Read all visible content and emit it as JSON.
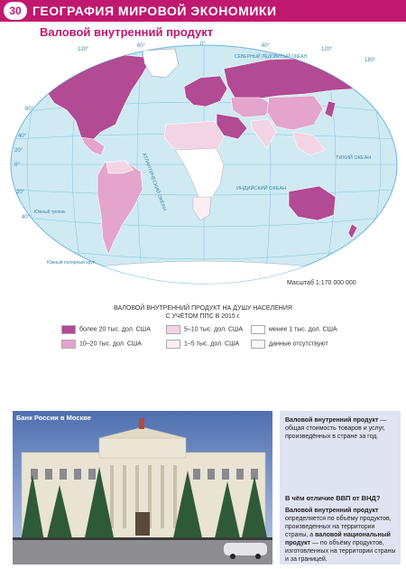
{
  "header": {
    "page_number": "30",
    "section_title": "ГЕОГРАФИЯ МИРОВОЙ ЭКОНОМИКИ"
  },
  "map": {
    "title": "Валовой внутренний продукт",
    "scale": "Масштаб 1:170 000 000",
    "ocean_labels": {
      "indian": "ИНДИЙСКИЙ ОКЕАН",
      "pacific_east": "ТИХИЙ ОКЕАН",
      "atlantic": "АТЛАНТИЧЕСКИЙ ОКЕАН",
      "arctic": "СЕВЕРНЫЙ ЛЕДОВИТЫЙ ОКЕАН"
    },
    "longitude_labels": [
      "120°",
      "60°",
      "0°",
      "60°",
      "120°",
      "180°"
    ],
    "latitude_labels": [
      "60°",
      "40°",
      "20°",
      "0°",
      "20°",
      "40°"
    ],
    "tropic_labels": {
      "capricorn": "Южный тропик",
      "polar": "Южный полярный круг"
    },
    "colors": {
      "over20": "#b24a94",
      "t10_20": "#e4a4cb",
      "t5_10": "#f3d4e4",
      "t1_5": "#faeef4",
      "under1": "#ffffff",
      "nodata": "#ffffff",
      "ocean": "#cfeaf3",
      "grid": "#7fc3dd"
    }
  },
  "legend": {
    "title_line1": "ВАЛОВОЙ ВНУТРЕННИЙ ПРОДУКТ НА ДУШУ НАСЕЛЕНИЯ",
    "title_line2": "С УЧЁТОМ ППС В 2015 г.",
    "items": [
      {
        "label": "более 20 тыс. дол. США",
        "color": "#b24a94"
      },
      {
        "label": "5–10 тыс. дол. США",
        "color": "#f3d4e4"
      },
      {
        "label": "менее 1 тыс. дол. США",
        "color": "#ffffff"
      },
      {
        "label": "10–20 тыс. дол. США",
        "color": "#e4a4cb"
      },
      {
        "label": "1–5 тыс. дол. США",
        "color": "#faeef4"
      },
      {
        "label": "данные отсутствуют",
        "color": "#ffffff"
      }
    ]
  },
  "photo": {
    "caption": "Банк России в Москве"
  },
  "sidebar": {
    "def1_term": "Валовой внутренний продукт",
    "def1_text": " — общая стоимость товаров и услуг, произведённых в стране за год.",
    "question": "В чём отличие ВВП от ВНД?",
    "def2_term1": "Валовой внутренний продукт",
    "def2_text1": " определяется по объёму продуктов, произведенных на территории страны, а ",
    "def2_term2": "валовой национальный продукт",
    "def2_text2": " — по объёму продуктов, изготовленных на территории страны и за границей."
  }
}
